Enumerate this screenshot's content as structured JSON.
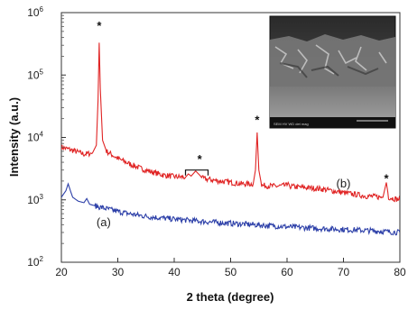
{
  "chart_data": {
    "type": "line",
    "title": "",
    "xlabel": "2 theta (degree)",
    "ylabel": "Intensity (a.u.)",
    "xlim": [
      20,
      80
    ],
    "ylim": [
      100,
      1000000
    ],
    "yscale": "log",
    "grid": false,
    "x_ticks": [
      20,
      30,
      40,
      50,
      60,
      70,
      80
    ],
    "y_ticks": [
      {
        "value": 100,
        "base": "10",
        "exp": "2"
      },
      {
        "value": 1000,
        "base": "10",
        "exp": "3"
      },
      {
        "value": 10000,
        "base": "10",
        "exp": "4"
      },
      {
        "value": 100000,
        "base": "10",
        "exp": "5"
      },
      {
        "value": 1000000,
        "base": "10",
        "exp": "6"
      }
    ],
    "series": [
      {
        "label": "(b)",
        "color": "#e02424",
        "points": [
          [
            20,
            7000
          ],
          [
            22,
            6200
          ],
          [
            24,
            5400
          ],
          [
            25.5,
            5600
          ],
          [
            26.2,
            7500
          ],
          [
            26.5,
            40000
          ],
          [
            26.7,
            330000
          ],
          [
            26.9,
            60000
          ],
          [
            27.3,
            9000
          ],
          [
            28,
            6000
          ],
          [
            30,
            4600
          ],
          [
            32,
            3800
          ],
          [
            34,
            3200
          ],
          [
            36,
            2800
          ],
          [
            38,
            2500
          ],
          [
            40,
            2350
          ],
          [
            42,
            2300
          ],
          [
            42.5,
            2600
          ],
          [
            43,
            2400
          ],
          [
            43.8,
            2900
          ],
          [
            44.5,
            2500
          ],
          [
            45,
            2200
          ],
          [
            48,
            2000
          ],
          [
            50,
            1900
          ],
          [
            52,
            1800
          ],
          [
            54,
            1800
          ],
          [
            54.4,
            3000
          ],
          [
            54.7,
            12000
          ],
          [
            55,
            3000
          ],
          [
            55.5,
            1700
          ],
          [
            58,
            1650
          ],
          [
            60,
            1700
          ],
          [
            60.2,
            1900
          ],
          [
            60.5,
            1650
          ],
          [
            62,
            1600
          ],
          [
            66,
            1500
          ],
          [
            70,
            1300
          ],
          [
            74,
            1150
          ],
          [
            77,
            1100
          ],
          [
            77.6,
            1900
          ],
          [
            78,
            1100
          ],
          [
            80,
            1000
          ]
        ]
      },
      {
        "label": "(a)",
        "color": "#2c3fa8",
        "points": [
          [
            20,
            1100
          ],
          [
            20.8,
            1400
          ],
          [
            21.2,
            1800
          ],
          [
            21.6,
            1400
          ],
          [
            22,
            1100
          ],
          [
            23,
            950
          ],
          [
            24,
            900
          ],
          [
            24.5,
            1050
          ],
          [
            25,
            850
          ],
          [
            26,
            800
          ],
          [
            28,
            720
          ],
          [
            30,
            650
          ],
          [
            32,
            600
          ],
          [
            34,
            560
          ],
          [
            36,
            530
          ],
          [
            40,
            490
          ],
          [
            45,
            450
          ],
          [
            50,
            420
          ],
          [
            55,
            395
          ],
          [
            60,
            370
          ],
          [
            65,
            350
          ],
          [
            70,
            335
          ],
          [
            75,
            320
          ],
          [
            80,
            300
          ]
        ]
      }
    ],
    "annotations": [
      {
        "text": "*",
        "x": 26.7,
        "y": 650000
      },
      {
        "text": "*",
        "x": 44.5,
        "y": 4700
      },
      {
        "text": "*",
        "x": 54.7,
        "y": 20000
      },
      {
        "text": "*",
        "x": 77.6,
        "y": 2300
      },
      {
        "text": "(b)",
        "x": 70,
        "y": 1800
      },
      {
        "text": "(a)",
        "x": 27.5,
        "y": 430
      }
    ],
    "bracket": {
      "x_start": 42,
      "x_end": 46,
      "y": 3000
    }
  },
  "inset": {
    "description_icon": "sem-micrograph-image",
    "scale_bar_caption": "SEM HV WD det mag"
  }
}
